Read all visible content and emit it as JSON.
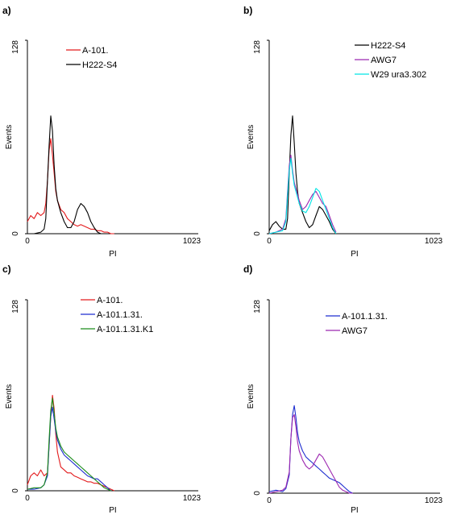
{
  "chart_data": [
    {
      "type": "line",
      "panel": "a)",
      "xlabel": "PI",
      "ylabel": "Events",
      "xlim": [
        0,
        1023
      ],
      "ylim": [
        0,
        128
      ],
      "x_ticks": [
        "0",
        "1023"
      ],
      "y_ticks": [
        "0",
        "128"
      ],
      "legend": "top-center",
      "series": [
        {
          "name": "A-101.",
          "color": "#e31a1c",
          "x": [
            0,
            20,
            40,
            60,
            80,
            100,
            110,
            120,
            130,
            140,
            150,
            160,
            170,
            180,
            200,
            220,
            240,
            260,
            280,
            300,
            320,
            340,
            360,
            380,
            400,
            420,
            440,
            460,
            480,
            500,
            520
          ],
          "y": [
            8,
            12,
            10,
            14,
            12,
            14,
            20,
            35,
            55,
            63,
            52,
            40,
            28,
            22,
            16,
            14,
            10,
            8,
            6,
            5,
            6,
            5,
            4,
            3,
            3,
            2,
            2,
            1,
            1,
            0,
            0
          ]
        },
        {
          "name": "H222-S4",
          "color": "#000000",
          "x": [
            0,
            40,
            80,
            100,
            110,
            120,
            130,
            140,
            150,
            160,
            170,
            180,
            200,
            220,
            240,
            260,
            280,
            300,
            320,
            340,
            360,
            380,
            400,
            420,
            440
          ],
          "y": [
            0,
            0,
            1,
            3,
            10,
            35,
            58,
            78,
            68,
            45,
            30,
            22,
            14,
            8,
            4,
            4,
            8,
            16,
            20,
            18,
            14,
            8,
            4,
            1,
            0
          ]
        }
      ]
    },
    {
      "type": "line",
      "panel": "b)",
      "xlabel": "PI",
      "ylabel": "Events",
      "xlim": [
        0,
        1023
      ],
      "ylim": [
        0,
        128
      ],
      "x_ticks": [
        "0",
        "1023"
      ],
      "y_ticks": [
        "0",
        "128"
      ],
      "legend": "top-center",
      "series": [
        {
          "name": "H222-S4",
          "color": "#000000",
          "x": [
            0,
            20,
            40,
            60,
            80,
            100,
            110,
            120,
            130,
            140,
            150,
            160,
            170,
            180,
            200,
            220,
            240,
            260,
            280,
            300,
            320,
            340,
            360,
            380,
            400
          ],
          "y": [
            2,
            6,
            8,
            5,
            3,
            3,
            10,
            40,
            65,
            78,
            60,
            40,
            28,
            20,
            14,
            8,
            4,
            6,
            12,
            18,
            16,
            12,
            8,
            3,
            0
          ]
        },
        {
          "name": "AWG7",
          "color": "#9c27b0",
          "x": [
            0,
            40,
            80,
            100,
            110,
            120,
            130,
            140,
            150,
            160,
            170,
            180,
            200,
            220,
            240,
            260,
            280,
            300,
            320,
            340,
            360,
            380,
            400
          ],
          "y": [
            0,
            1,
            3,
            10,
            28,
            45,
            52,
            42,
            34,
            30,
            26,
            22,
            16,
            18,
            22,
            26,
            28,
            24,
            20,
            18,
            12,
            6,
            1
          ]
        },
        {
          "name": "W29 ura3.302",
          "color": "#00e5e5",
          "x": [
            0,
            40,
            80,
            100,
            110,
            120,
            130,
            140,
            150,
            160,
            170,
            180,
            200,
            220,
            240,
            260,
            280,
            300,
            320,
            340,
            360,
            380,
            400
          ],
          "y": [
            0,
            1,
            2,
            8,
            25,
            42,
            50,
            40,
            32,
            28,
            24,
            20,
            15,
            14,
            18,
            24,
            30,
            28,
            22,
            16,
            10,
            4,
            0
          ]
        }
      ]
    },
    {
      "type": "line",
      "panel": "c)",
      "xlabel": "PI",
      "ylabel": "Events",
      "xlim": [
        0,
        1023
      ],
      "ylim": [
        0,
        128
      ],
      "x_ticks": [
        "0",
        "1023"
      ],
      "y_ticks": [
        "0",
        "128"
      ],
      "legend": "top-center",
      "series": [
        {
          "name": "A-101.",
          "color": "#e31a1c",
          "x": [
            0,
            20,
            40,
            60,
            80,
            100,
            120,
            130,
            140,
            150,
            160,
            170,
            180,
            200,
            220,
            240,
            260,
            280,
            300,
            320,
            340,
            360,
            380,
            400,
            420,
            440,
            460,
            480,
            500,
            520
          ],
          "y": [
            4,
            10,
            12,
            10,
            14,
            10,
            12,
            30,
            50,
            64,
            55,
            38,
            26,
            16,
            14,
            12,
            12,
            10,
            9,
            8,
            7,
            6,
            6,
            5,
            5,
            4,
            3,
            2,
            1,
            0
          ]
        },
        {
          "name": "A-101.1.31.",
          "color": "#1f2fd0",
          "x": [
            0,
            40,
            80,
            100,
            120,
            130,
            140,
            150,
            160,
            170,
            180,
            200,
            220,
            240,
            260,
            280,
            300,
            320,
            340,
            360,
            380,
            400,
            420,
            440,
            460,
            480,
            500
          ],
          "y": [
            1,
            1,
            2,
            4,
            10,
            30,
            50,
            56,
            48,
            40,
            34,
            28,
            24,
            22,
            20,
            18,
            16,
            14,
            12,
            10,
            9,
            8,
            8,
            6,
            4,
            2,
            0
          ]
        },
        {
          "name": "A-101.1.31.K1",
          "color": "#1a8c1a",
          "x": [
            0,
            40,
            80,
            100,
            120,
            130,
            140,
            150,
            160,
            170,
            180,
            200,
            220,
            240,
            260,
            280,
            300,
            320,
            340,
            360,
            380,
            400,
            420,
            440,
            460,
            480,
            500
          ],
          "y": [
            1,
            2,
            2,
            4,
            12,
            34,
            54,
            62,
            52,
            42,
            36,
            30,
            26,
            24,
            22,
            20,
            18,
            16,
            14,
            12,
            10,
            8,
            6,
            4,
            2,
            1,
            0
          ]
        }
      ]
    },
    {
      "type": "line",
      "panel": "d)",
      "xlabel": "PI",
      "ylabel": "Events",
      "xlim": [
        0,
        1023
      ],
      "ylim": [
        0,
        128
      ],
      "x_ticks": [
        "0",
        "1023"
      ],
      "y_ticks": [
        "0",
        "128"
      ],
      "legend": "top-center",
      "series": [
        {
          "name": "A-101.1.31.",
          "color": "#1f2fd0",
          "x": [
            0,
            40,
            80,
            100,
            120,
            130,
            140,
            150,
            160,
            170,
            180,
            200,
            220,
            240,
            260,
            280,
            300,
            320,
            340,
            360,
            380,
            400,
            420,
            440,
            460,
            480,
            500
          ],
          "y": [
            1,
            2,
            1,
            3,
            12,
            36,
            52,
            58,
            50,
            40,
            34,
            28,
            24,
            22,
            20,
            18,
            16,
            14,
            12,
            10,
            9,
            8,
            7,
            5,
            3,
            1,
            0
          ]
        },
        {
          "name": "AWG7",
          "color": "#9c27b0",
          "x": [
            0,
            40,
            80,
            100,
            120,
            130,
            140,
            150,
            160,
            170,
            180,
            200,
            220,
            240,
            260,
            280,
            300,
            320,
            340,
            360,
            380,
            400,
            420,
            440,
            460,
            480,
            500
          ],
          "y": [
            0,
            1,
            2,
            4,
            14,
            36,
            50,
            52,
            44,
            34,
            28,
            22,
            18,
            16,
            18,
            22,
            26,
            24,
            20,
            16,
            12,
            8,
            4,
            2,
            1,
            0,
            0
          ]
        }
      ]
    }
  ]
}
